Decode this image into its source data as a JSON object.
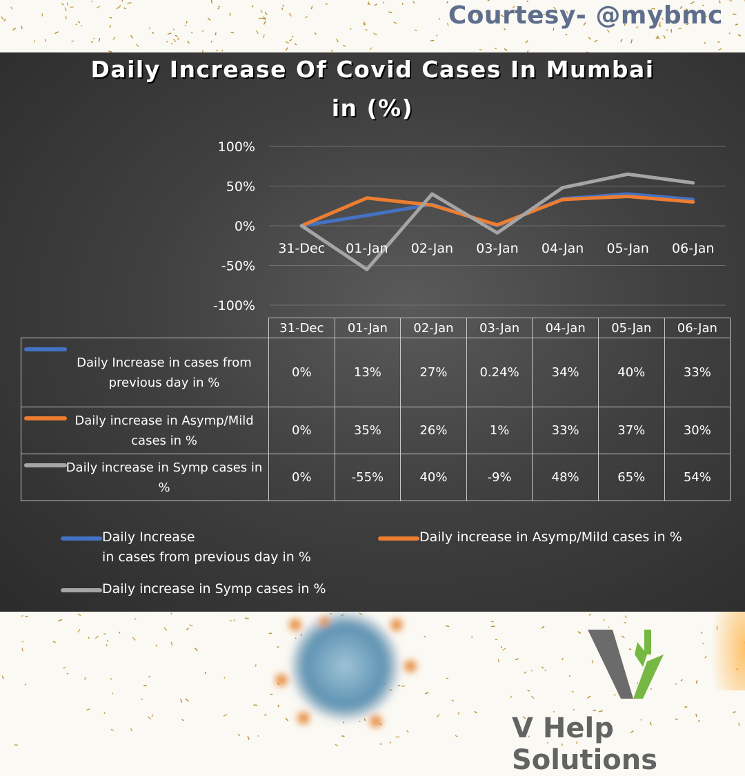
{
  "header": {
    "courtesy": "Courtesy- @mybmc"
  },
  "chart_data": {
    "type": "line",
    "title": "Daily Increase Of Covid Cases In Mumbai",
    "title_line2": "in (%)",
    "categories": [
      "31-Dec",
      "01-Jan",
      "02-Jan",
      "03-Jan",
      "04-Jan",
      "05-Jan",
      "06-Jan"
    ],
    "y_ticks": [
      "100%",
      "50%",
      "0%",
      "-50%",
      "-100%"
    ],
    "ylim": [
      -100,
      100
    ],
    "grid": true,
    "legend_placement": "bottom",
    "series": [
      {
        "name": "Daily Increase\nin cases from previous day in %",
        "color": "#4472c4",
        "values": [
          0,
          13,
          27,
          0.24,
          34,
          40,
          33
        ],
        "labels": [
          "0%",
          "13%",
          "27%",
          "0.24%",
          "34%",
          "40%",
          "33%"
        ]
      },
      {
        "name": "Daily increase in Asymp/Mild cases in %",
        "color": "#ed7d31",
        "values": [
          0,
          35,
          26,
          1,
          33,
          37,
          30
        ],
        "labels": [
          "0%",
          "35%",
          "26%",
          "1%",
          "33%",
          "37%",
          "30%"
        ]
      },
      {
        "name": "Daily increase in Symp cases in %",
        "color": "#a5a5a5",
        "values": [
          0,
          -55,
          40,
          -9,
          48,
          65,
          54
        ],
        "labels": [
          "0%",
          "-55%",
          "40%",
          "-9%",
          "48%",
          "65%",
          "54%"
        ]
      }
    ]
  },
  "footer": {
    "brand": "V Help Solutions"
  }
}
